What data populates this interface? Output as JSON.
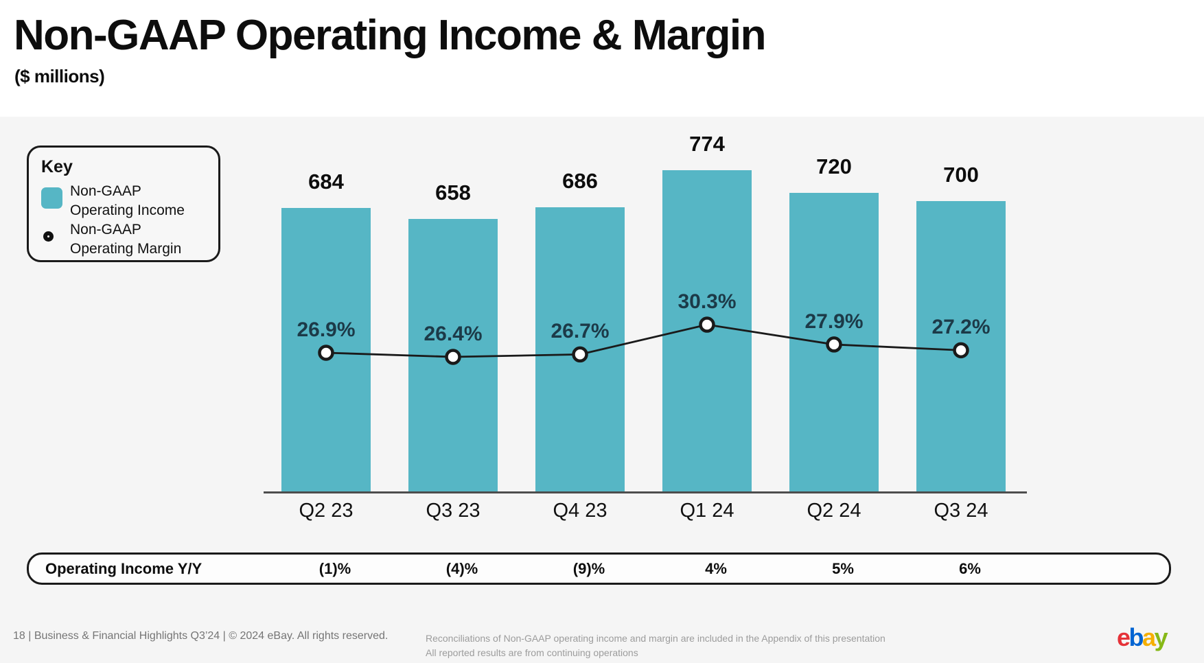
{
  "slide": {
    "title": "Non-GAAP Operating Income & Margin",
    "subtitle": "($ millions)"
  },
  "legend": {
    "heading": "Key",
    "items": [
      {
        "swatch": "teal-square",
        "line1": "Non-GAAP",
        "line2": "Operating Income"
      },
      {
        "swatch": "ring-marker",
        "line1": "Non-GAAP",
        "line2": "Operating Margin"
      }
    ]
  },
  "chart_data": {
    "type": "bar",
    "categories": [
      "Q2 23",
      "Q3 23",
      "Q4 23",
      "Q1 24",
      "Q2 24",
      "Q3 24"
    ],
    "series": [
      {
        "name": "Non-GAAP Operating Income",
        "type": "bar",
        "values": [
          684,
          658,
          686,
          774,
          720,
          700
        ],
        "labels": [
          "684",
          "658",
          "686",
          "774",
          "720",
          "700"
        ],
        "color": "#56B6C5"
      },
      {
        "name": "Non-GAAP Operating Margin",
        "type": "line",
        "values": [
          26.9,
          26.4,
          26.7,
          30.3,
          27.9,
          27.2
        ],
        "labels": [
          "26.9%",
          "26.4%",
          "26.7%",
          "30.3%",
          "27.9%",
          "27.2%"
        ],
        "color": "#1a1a1a",
        "marker": "open-circle"
      }
    ],
    "title": "Non-GAAP Operating Income & Margin ($ millions)",
    "xlabel": "",
    "ylabel": "",
    "value_labels_position": "above-bars",
    "margin_labels_position": "above-markers",
    "legend_position": "top-left",
    "grid": false
  },
  "yoy_row": {
    "label": "Operating Income Y/Y",
    "values": [
      "(1)%",
      "(4)%",
      "(9)%",
      "4%",
      "5%",
      "6%"
    ]
  },
  "footer": {
    "left": "18 | Business & Financial Highlights Q3’24 | © 2024 eBay. All rights reserved.",
    "note_line1": "Reconciliations of Non-GAAP operating income and margin are included in the Appendix of this presentation",
    "note_line2": "All reported results are from continuing operations",
    "logo_letters": [
      "e",
      "b",
      "a",
      "y"
    ]
  },
  "colors": {
    "bar_teal": "#56B6C5",
    "margin_text": "#1C3A48",
    "line_black": "#1a1a1a",
    "stage_gray": "#f5f5f5",
    "logo_e": "#E53238",
    "logo_b": "#0064D2",
    "logo_a": "#F5AF02",
    "logo_y": "#86B817"
  }
}
